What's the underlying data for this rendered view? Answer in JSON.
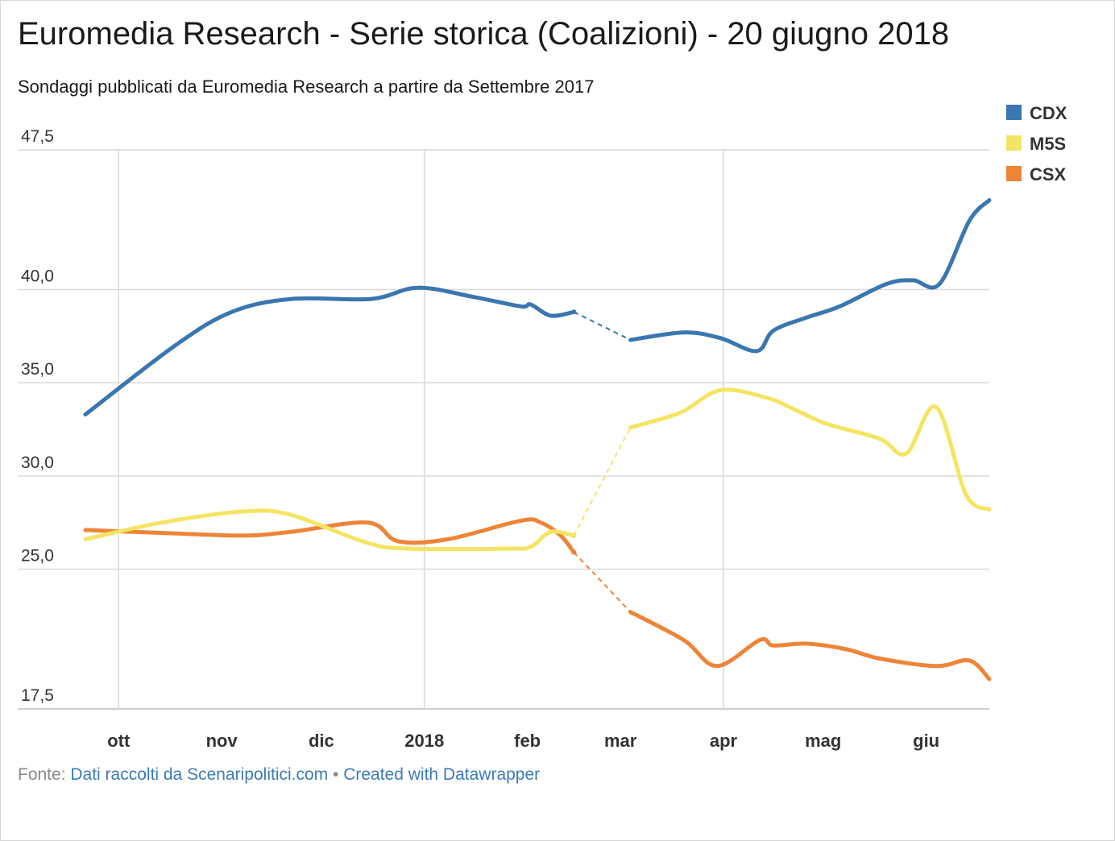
{
  "title": "Euromedia Research - Serie storica (Coalizioni) - 20 giugno 2018",
  "subtitle": "Sondaggi pubblicati da Euromedia Research a partire da Settembre 2017",
  "footer": {
    "prefix": "Fonte: ",
    "source_link": "Dati raccolti da Scenaripolitici.com",
    "separator": " • ",
    "credit_link": "Created with Datawrapper"
  },
  "chart_data": {
    "type": "line",
    "yticks": [
      "47,5",
      "40,0",
      "35,0",
      "30,0",
      "25,0",
      "17,5"
    ],
    "ytick_values": [
      47.5,
      40,
      35,
      30,
      25,
      17.5
    ],
    "ylim": [
      17.5,
      47.5
    ],
    "xlim": [
      "2017-09-21",
      "2018-06-20"
    ],
    "xticks": [
      {
        "label": "ott",
        "date": "2017-10-01"
      },
      {
        "label": "nov",
        "date": "2017-11-01"
      },
      {
        "label": "dic",
        "date": "2017-12-01"
      },
      {
        "label": "2018",
        "date": "2018-01-01"
      },
      {
        "label": "feb",
        "date": "2018-02-01"
      },
      {
        "label": "mar",
        "date": "2018-03-01"
      },
      {
        "label": "apr",
        "date": "2018-04-01"
      },
      {
        "label": "mag",
        "date": "2018-05-01"
      },
      {
        "label": "giu",
        "date": "2018-06-01"
      }
    ],
    "gridlines": {
      "horizontal": [
        47.5,
        40,
        35,
        30,
        25
      ],
      "vertical": [
        "2017-10-01",
        "2018-01-01",
        "2018-04-01"
      ]
    },
    "legend_position": "top-right",
    "gap": {
      "from": "2018-02-15",
      "to": "2018-03-04",
      "style": "dashed"
    },
    "series": [
      {
        "name": "CDX",
        "color": "#3a76b0",
        "points": [
          [
            "2017-09-21",
            33.3
          ],
          [
            "2017-10-18",
            37.0
          ],
          [
            "2017-11-04",
            38.8
          ],
          [
            "2017-11-22",
            39.5
          ],
          [
            "2017-12-16",
            39.5
          ],
          [
            "2017-12-30",
            40.1
          ],
          [
            "2018-01-16",
            39.6
          ],
          [
            "2018-01-30",
            39.1
          ],
          [
            "2018-02-02",
            39.2
          ],
          [
            "2018-02-08",
            38.6
          ],
          [
            "2018-02-15",
            38.8
          ],
          [
            "2018-03-04",
            37.3
          ],
          [
            "2018-03-20",
            37.7
          ],
          [
            "2018-03-31",
            37.4
          ],
          [
            "2018-04-11",
            36.7
          ],
          [
            "2018-04-16",
            37.8
          ],
          [
            "2018-04-26",
            38.5
          ],
          [
            "2018-05-06",
            39.1
          ],
          [
            "2018-05-20",
            40.3
          ],
          [
            "2018-05-28",
            40.5
          ],
          [
            "2018-06-05",
            40.3
          ],
          [
            "2018-06-14",
            43.7
          ],
          [
            "2018-06-20",
            44.8
          ]
        ]
      },
      {
        "name": "M5S",
        "color": "#f5e463",
        "points": [
          [
            "2017-09-21",
            26.6
          ],
          [
            "2017-10-14",
            27.5
          ],
          [
            "2017-11-08",
            28.1
          ],
          [
            "2017-11-22",
            27.9
          ],
          [
            "2017-12-15",
            26.4
          ],
          [
            "2017-12-28",
            26.1
          ],
          [
            "2018-01-26",
            26.1
          ],
          [
            "2018-02-02",
            26.2
          ],
          [
            "2018-02-08",
            27.0
          ],
          [
            "2018-02-15",
            26.8
          ],
          [
            "2018-03-04",
            32.6
          ],
          [
            "2018-03-19",
            33.4
          ],
          [
            "2018-03-31",
            34.6
          ],
          [
            "2018-04-14",
            34.2
          ],
          [
            "2018-04-22",
            33.6
          ],
          [
            "2018-05-02",
            32.8
          ],
          [
            "2018-05-18",
            32.0
          ],
          [
            "2018-05-26",
            31.2
          ],
          [
            "2018-06-04",
            33.7
          ],
          [
            "2018-06-13",
            29.0
          ],
          [
            "2018-06-20",
            28.2
          ]
        ]
      },
      {
        "name": "CSX",
        "color": "#ee8437",
        "points": [
          [
            "2017-09-21",
            27.1
          ],
          [
            "2017-10-20",
            26.9
          ],
          [
            "2017-11-08",
            26.8
          ],
          [
            "2017-11-22",
            27.0
          ],
          [
            "2017-12-15",
            27.5
          ],
          [
            "2017-12-24",
            26.5
          ],
          [
            "2018-01-08",
            26.6
          ],
          [
            "2018-01-30",
            27.6
          ],
          [
            "2018-02-05",
            27.5
          ],
          [
            "2018-02-11",
            26.8
          ],
          [
            "2018-02-15",
            25.9
          ],
          [
            "2018-03-04",
            22.7
          ],
          [
            "2018-03-20",
            21.2
          ],
          [
            "2018-03-30",
            19.8
          ],
          [
            "2018-04-12",
            21.2
          ],
          [
            "2018-04-16",
            20.9
          ],
          [
            "2018-04-26",
            21.0
          ],
          [
            "2018-05-08",
            20.7
          ],
          [
            "2018-05-18",
            20.2
          ],
          [
            "2018-06-04",
            19.8
          ],
          [
            "2018-06-14",
            20.1
          ],
          [
            "2018-06-20",
            19.1
          ]
        ]
      }
    ]
  }
}
